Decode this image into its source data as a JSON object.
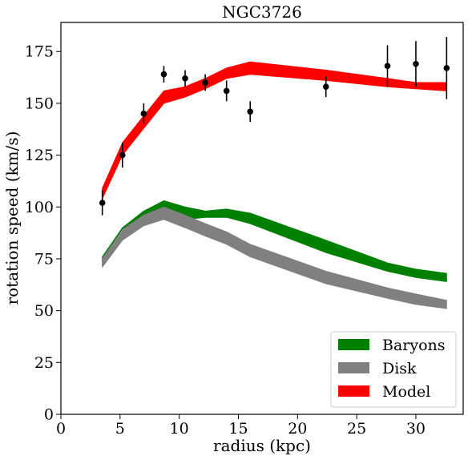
{
  "chart_data": {
    "type": "line",
    "title": "NGC3726",
    "xlabel": "radius (kpc)",
    "ylabel": "rotation speed (km/s)",
    "xlim": [
      0,
      34
    ],
    "ylim": [
      0,
      189
    ],
    "xticks": [
      0,
      5,
      10,
      15,
      20,
      25,
      30
    ],
    "yticks": [
      0,
      25,
      50,
      75,
      100,
      125,
      150,
      175
    ],
    "grid": false,
    "legend_position": "bottom-right",
    "bands": [
      {
        "name": "Baryons",
        "color": "#008000",
        "x": [
          3.5,
          5.2,
          7.0,
          8.7,
          10.5,
          12.2,
          14.0,
          16.0,
          22.4,
          27.6,
          30.0,
          32.6
        ],
        "lower": [
          72,
          86,
          93,
          97,
          94,
          95,
          95,
          92,
          78,
          69,
          66,
          64
        ],
        "upper": [
          76,
          90,
          98,
          103,
          100,
          98,
          99,
          97,
          84,
          73,
          70,
          68
        ]
      },
      {
        "name": "Disk",
        "color": "#808080",
        "x": [
          3.5,
          5.2,
          7.0,
          8.7,
          10.5,
          12.2,
          14.0,
          16.0,
          22.4,
          27.6,
          30.0,
          32.6
        ],
        "lower": [
          71,
          84,
          91,
          94,
          90,
          86,
          82,
          76,
          63,
          56,
          53,
          51
        ],
        "upper": [
          75,
          89,
          96,
          100,
          96,
          92,
          88,
          82,
          69,
          61,
          58,
          55
        ]
      },
      {
        "name": "Model",
        "color": "#ff0000",
        "x": [
          3.5,
          5.2,
          7.0,
          8.7,
          10.5,
          12.2,
          14.0,
          16.0,
          22.4,
          27.6,
          30.0,
          32.6
        ],
        "lower": [
          104,
          125,
          138,
          150,
          153,
          157,
          162,
          164,
          161,
          158,
          157,
          156
        ],
        "upper": [
          109,
          131,
          144,
          156,
          158,
          162,
          167,
          170,
          166,
          162,
          160,
          160
        ]
      }
    ],
    "points": {
      "color": "#000000",
      "x": [
        3.5,
        5.2,
        7.0,
        8.7,
        10.5,
        12.2,
        14.0,
        16.0,
        22.4,
        27.6,
        30.0,
        32.6
      ],
      "y": [
        102,
        125,
        145,
        164,
        162,
        160,
        156,
        146,
        158,
        168,
        169,
        167
      ],
      "err": [
        6,
        6,
        5,
        4,
        4,
        4,
        5,
        5,
        5,
        10,
        11,
        15
      ]
    }
  }
}
